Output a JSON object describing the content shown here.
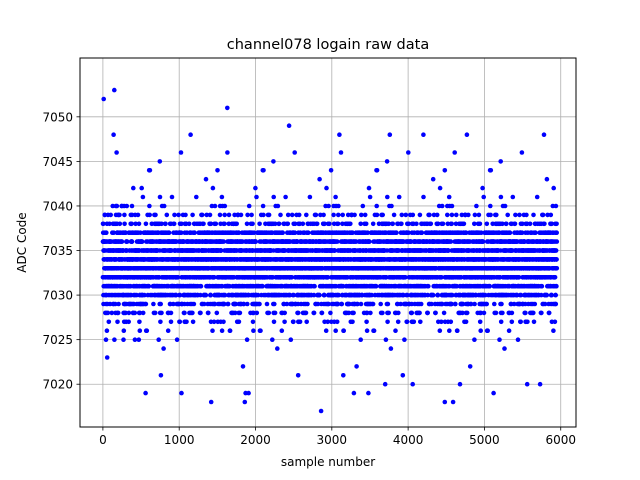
{
  "chart_data": {
    "type": "scatter",
    "title": "channel078 logain raw data",
    "xlabel": "sample number",
    "ylabel": "ADC Code",
    "xlim": [
      -300,
      6200
    ],
    "ylim": [
      7015.2,
      7056.6
    ],
    "x_ticks": [
      0,
      1000,
      2000,
      3000,
      4000,
      5000,
      6000
    ],
    "y_ticks": [
      7020,
      7025,
      7030,
      7035,
      7040,
      7045,
      7050
    ],
    "grid": true,
    "marker_color": "#0000ff",
    "n_samples": 5950,
    "bulk_range": [
      7024,
      7042
    ],
    "core_range": [
      7027,
      7040
    ],
    "outliers": [
      {
        "x": 10,
        "y": 7052
      },
      {
        "x": 150,
        "y": 7053
      },
      {
        "x": 140,
        "y": 7048
      },
      {
        "x": 180,
        "y": 7046
      },
      {
        "x": 1630,
        "y": 7051
      },
      {
        "x": 2440,
        "y": 7049
      },
      {
        "x": 3100,
        "y": 7048
      },
      {
        "x": 3760,
        "y": 7048
      },
      {
        "x": 4200,
        "y": 7048
      },
      {
        "x": 4770,
        "y": 7048
      },
      {
        "x": 5780,
        "y": 7048
      },
      {
        "x": 1150,
        "y": 7048
      },
      {
        "x": 2860,
        "y": 7017
      },
      {
        "x": 1420,
        "y": 7018
      },
      {
        "x": 1860,
        "y": 7018
      },
      {
        "x": 4480,
        "y": 7018
      },
      {
        "x": 4590,
        "y": 7018
      },
      {
        "x": 560,
        "y": 7019
      },
      {
        "x": 1030,
        "y": 7019
      },
      {
        "x": 1870,
        "y": 7019
      },
      {
        "x": 1910,
        "y": 7019
      },
      {
        "x": 3290,
        "y": 7019
      },
      {
        "x": 3480,
        "y": 7019
      },
      {
        "x": 5120,
        "y": 7019
      },
      {
        "x": 760,
        "y": 7021
      },
      {
        "x": 2560,
        "y": 7021
      },
      {
        "x": 3700,
        "y": 7020
      },
      {
        "x": 4060,
        "y": 7020
      },
      {
        "x": 4680,
        "y": 7020
      },
      {
        "x": 5560,
        "y": 7020
      },
      {
        "x": 5730,
        "y": 7020
      },
      {
        "x": 3150,
        "y": 7021
      },
      {
        "x": 3930,
        "y": 7021
      }
    ]
  }
}
